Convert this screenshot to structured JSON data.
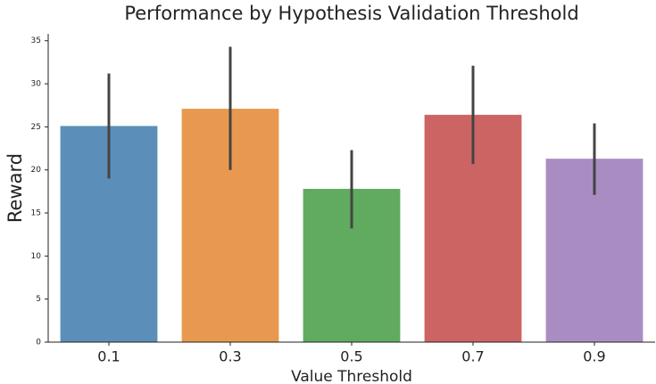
{
  "chart_data": {
    "type": "bar",
    "title": "Performance by Hypothesis Validation Threshold",
    "x_label": "Value Threshold",
    "y_label": "Reward",
    "categories": [
      "0.1",
      "0.3",
      "0.5",
      "0.7",
      "0.9"
    ],
    "values": [
      25.1,
      27.1,
      17.8,
      26.4,
      21.3
    ],
    "ci_low": [
      19.0,
      20.0,
      13.2,
      20.7,
      17.1
    ],
    "ci_high": [
      31.2,
      34.3,
      22.3,
      32.1,
      25.4
    ],
    "colors": [
      "#5b8fb9",
      "#e8994f",
      "#60ab5f",
      "#cd6464",
      "#a98dc2"
    ],
    "error_color": "#444444",
    "ylim": [
      0,
      35.8
    ],
    "yticks": [
      0,
      5,
      10,
      15,
      20,
      25,
      30,
      35
    ],
    "grid": false
  }
}
